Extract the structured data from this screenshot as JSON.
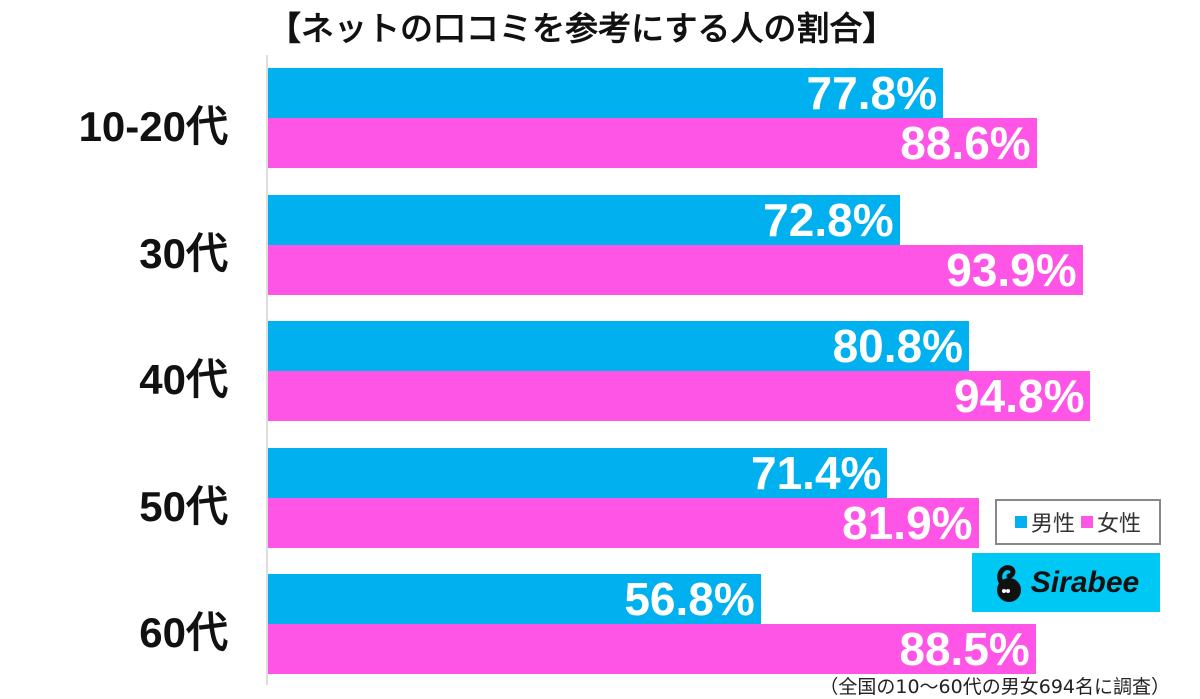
{
  "title": "【ネットの口コミを参考にする人の割合】",
  "legend": {
    "male": "男性",
    "female": "女性"
  },
  "logo": {
    "text": "Sirabee"
  },
  "note": "（全国の10〜60代の男女694名に調査）",
  "colors": {
    "male": "#00b0ef",
    "female": "#ff55e6",
    "logo_bg": "#00c8f5"
  },
  "groups": [
    {
      "label": "10-20代",
      "male": "77.8%",
      "female": "88.6%"
    },
    {
      "label": "30代",
      "male": "72.8%",
      "female": "93.9%"
    },
    {
      "label": "40代",
      "male": "80.8%",
      "female": "94.8%"
    },
    {
      "label": "50代",
      "male": "71.4%",
      "female": "81.9%"
    },
    {
      "label": "60代",
      "male": "56.8%",
      "female": "88.5%"
    }
  ],
  "chart_data": {
    "type": "bar",
    "orientation": "horizontal",
    "title": "【ネットの口コミを参考にする人の割合】",
    "categories": [
      "10-20代",
      "30代",
      "40代",
      "50代",
      "60代"
    ],
    "series": [
      {
        "name": "男性",
        "color": "#00b0ef",
        "values": [
          77.8,
          72.8,
          80.8,
          71.4,
          56.8
        ]
      },
      {
        "name": "女性",
        "color": "#ff55e6",
        "values": [
          88.6,
          93.9,
          94.8,
          81.9,
          88.5
        ]
      }
    ],
    "xlabel": "",
    "ylabel": "",
    "xlim": [
      0,
      100
    ],
    "grid": false,
    "legend_position": "lower right",
    "annotation": "（全国の10〜60代の男女694名に調査）",
    "unit": "%"
  }
}
